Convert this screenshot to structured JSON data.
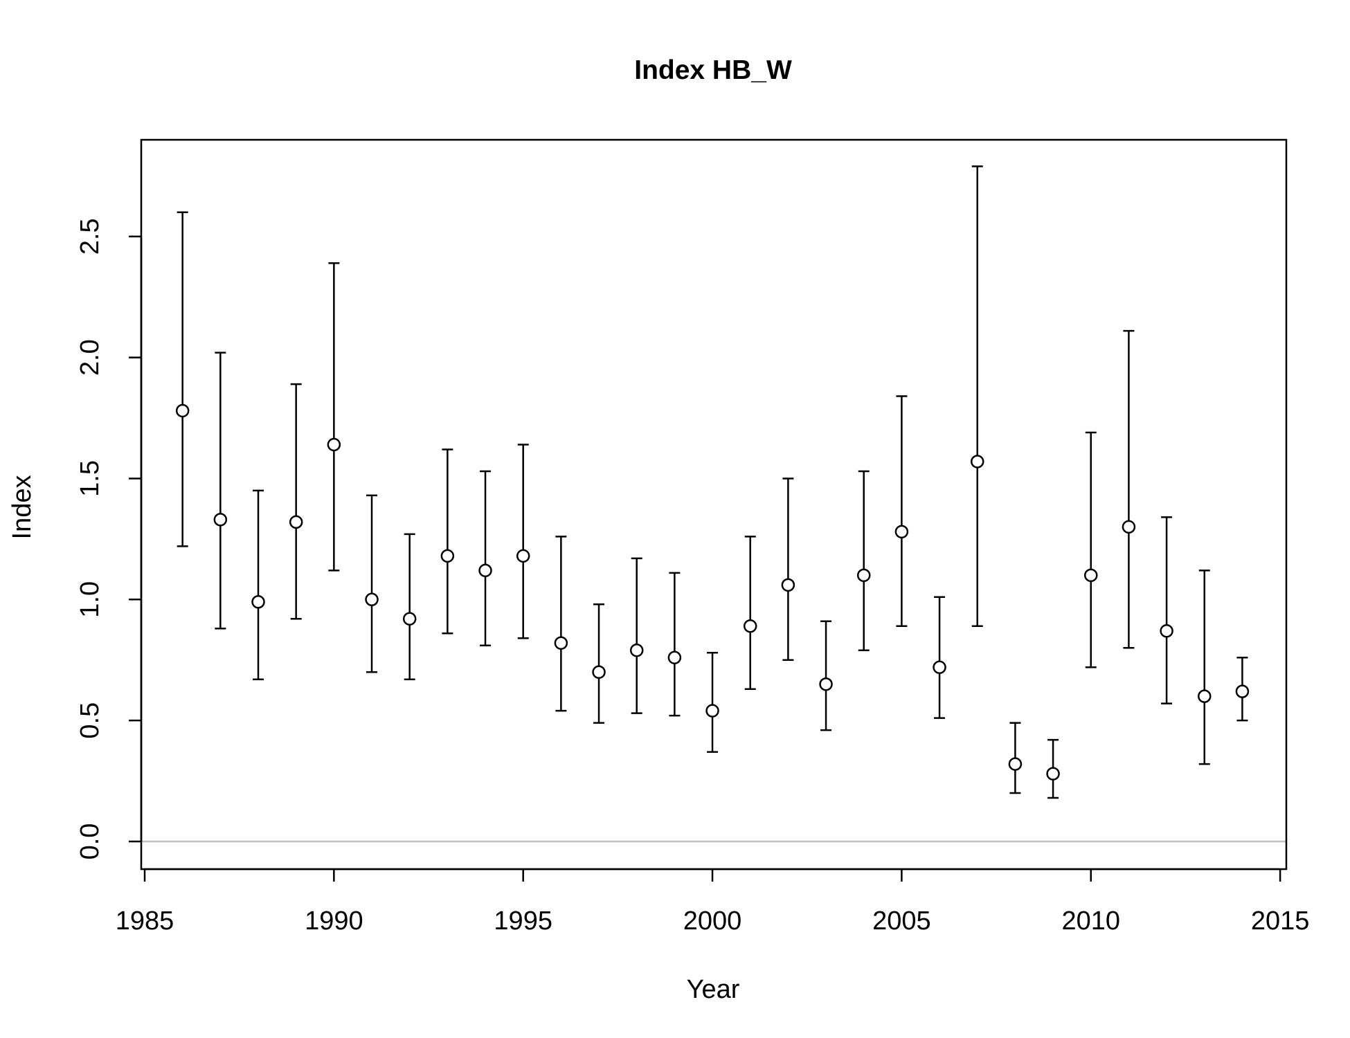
{
  "chart_data": {
    "type": "scatter",
    "title": "Index HB_W",
    "xlabel": "Year",
    "ylabel": "Index",
    "xlim": [
      1985,
      2015
    ],
    "ylim": [
      0.0,
      2.9
    ],
    "x_ticks": [
      1985,
      1990,
      1995,
      2000,
      2005,
      2010,
      2015
    ],
    "y_ticks": [
      0.0,
      0.5,
      1.0,
      1.5,
      2.0,
      2.5
    ],
    "x_tick_labels": [
      "1985",
      "1990",
      "1995",
      "2000",
      "2005",
      "2010",
      "2015"
    ],
    "y_tick_labels": [
      "0.0",
      "0.5",
      "1.0",
      "1.5",
      "2.0",
      "2.5"
    ],
    "reference_line": 0.0,
    "reference_line_color": "#c0c0c0",
    "grid": false,
    "series": [
      {
        "x": [
          1986,
          1987,
          1988,
          1989,
          1990,
          1991,
          1992,
          1993,
          1994,
          1995,
          1996,
          1997,
          1998,
          1999,
          2000,
          2001,
          2002,
          2003,
          2004,
          2005,
          2006,
          2007,
          2008,
          2009,
          2010,
          2011,
          2012,
          2013,
          2014
        ],
        "y": [
          1.78,
          1.33,
          0.99,
          1.32,
          1.64,
          1.0,
          0.92,
          1.18,
          1.12,
          1.18,
          0.82,
          0.7,
          0.79,
          0.76,
          0.54,
          0.89,
          1.06,
          0.65,
          1.1,
          1.28,
          0.72,
          1.57,
          0.32,
          0.28,
          1.1,
          1.3,
          0.87,
          0.6,
          0.62
        ],
        "lower": [
          1.22,
          0.88,
          0.67,
          0.92,
          1.12,
          0.7,
          0.67,
          0.86,
          0.81,
          0.84,
          0.54,
          0.49,
          0.53,
          0.52,
          0.37,
          0.63,
          0.75,
          0.46,
          0.79,
          0.89,
          0.51,
          0.89,
          0.2,
          0.18,
          0.72,
          0.8,
          0.57,
          0.32,
          0.5
        ],
        "upper": [
          2.6,
          2.02,
          1.45,
          1.89,
          2.39,
          1.43,
          1.27,
          1.62,
          1.53,
          1.64,
          1.26,
          0.98,
          1.17,
          1.11,
          0.78,
          1.26,
          1.5,
          0.91,
          1.53,
          1.84,
          1.01,
          2.79,
          0.49,
          0.42,
          1.69,
          2.11,
          1.34,
          1.12,
          0.76
        ]
      }
    ]
  }
}
